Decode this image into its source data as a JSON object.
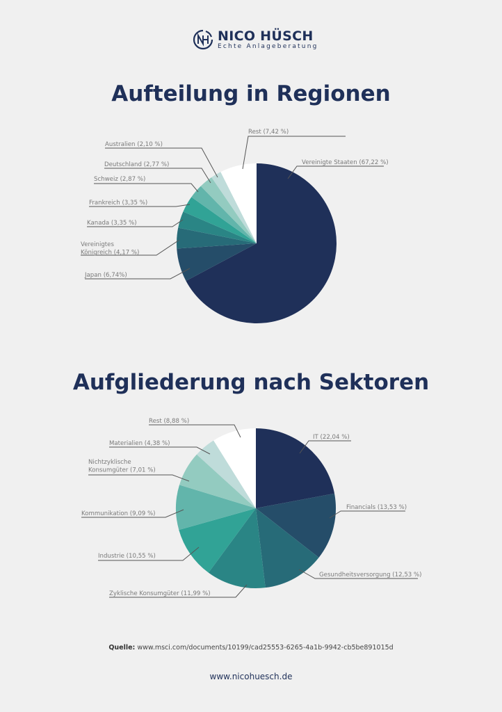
{
  "brand": {
    "name": "NICO HÜSCH",
    "tagline": "Echte Anlageberatung",
    "logo_letters": "NH"
  },
  "colors": {
    "primary": "#1f3059"
  },
  "chart_data": [
    {
      "type": "pie",
      "title": "Aufteilung in Regionen",
      "start": "top, clockwise",
      "slices": [
        {
          "label": "Vereinigte Staaten (67,22 %)",
          "value": 67.22,
          "color": "#1f3059"
        },
        {
          "label": "Japan (6,74%)",
          "value": 6.74,
          "color": "#254d69"
        },
        {
          "label": "Vereinigtes Königreich (4,17 %)",
          "label_lines": [
            "Vereinigtes",
            "Königreich (4,17 %)"
          ],
          "value": 4.17,
          "color": "#276b78"
        },
        {
          "label": "Kanada (3,35 %)",
          "value": 3.35,
          "color": "#2a8585"
        },
        {
          "label": "Frankreich (3,35 %)",
          "value": 3.35,
          "color": "#31a396"
        },
        {
          "label": "Schweiz (2,87 %)",
          "value": 2.87,
          "color": "#62b5ab"
        },
        {
          "label": "Deutschland (2,77 %)",
          "value": 2.77,
          "color": "#93cbc0"
        },
        {
          "label": "Australien (2,10 %)",
          "value": 2.1,
          "color": "#bfdcda"
        },
        {
          "label": "Rest (7,42 %)",
          "value": 7.42,
          "color": "#ffffff"
        }
      ]
    },
    {
      "type": "pie",
      "title": "Aufgliederung nach Sektoren",
      "start": "top, clockwise",
      "slices": [
        {
          "label": "IT (22,04 %)",
          "value": 22.04,
          "color": "#1f3059"
        },
        {
          "label": "Financials (13,53 %)",
          "value": 13.53,
          "color": "#254d69"
        },
        {
          "label": "Gesundheitsversorgung (12,53 %)",
          "value": 12.53,
          "color": "#276b78"
        },
        {
          "label": "Zyklische Konsumgüter (11,99 %)",
          "value": 11.99,
          "color": "#2a8585"
        },
        {
          "label": "Industrie (10,55 %)",
          "value": 10.55,
          "color": "#31a396"
        },
        {
          "label": "Kommunikation (9,09 %)",
          "value": 9.09,
          "color": "#62b5ab"
        },
        {
          "label": "Nichtzyklische Konsumgüter (7,01 %)",
          "label_lines": [
            "Nichtzyklische",
            "Konsumgüter (7,01 %)"
          ],
          "value": 7.01,
          "color": "#93cbc0"
        },
        {
          "label": "Materialien (4,38 %)",
          "value": 4.38,
          "color": "#bfdcda"
        },
        {
          "label": "Rest (8,88 %)",
          "value": 8.88,
          "color": "#ffffff"
        }
      ]
    }
  ],
  "footer": {
    "source_label": "Quelle:",
    "source_text": " www.msci.com/documents/10199/cad25553-6265-4a1b-9942-cb5be891015d",
    "website": "www.nicohuesch.de"
  }
}
